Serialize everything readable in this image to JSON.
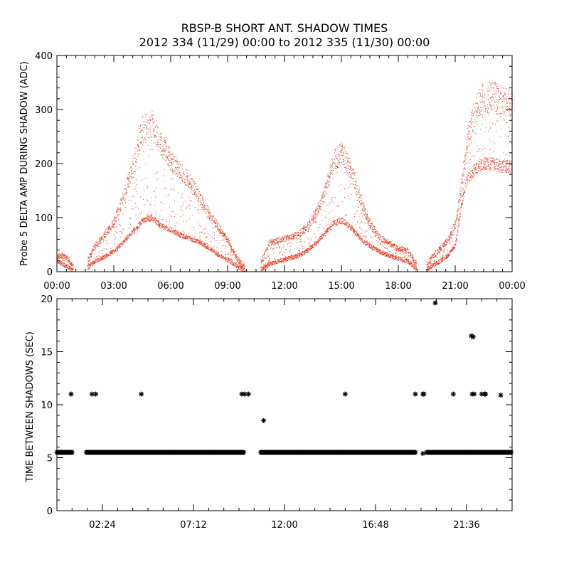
{
  "chart_data": [
    {
      "type": "scatter",
      "title": "RBSP-B SHORT ANT. SHADOW TIMES",
      "subtitle": "2012 334 (11/29) 00:00 to 2012 335 (11/30) 00:00",
      "xlabel": "",
      "ylabel": "Probe 5 DELTA AMP DURING SHADOW (ADC)",
      "xlim_hours": [
        0,
        24
      ],
      "ylim": [
        0,
        400
      ],
      "x_tick_labels": [
        "00:00",
        "03:00",
        "06:00",
        "09:00",
        "12:00",
        "15:00",
        "18:00",
        "21:00",
        "00:00"
      ],
      "y_ticks": [
        0,
        100,
        200,
        300,
        400
      ],
      "color": "#e8381b",
      "grid": false,
      "gaps_hours": [
        [
          0.85,
          1.6
        ],
        [
          9.9,
          10.75
        ],
        [
          18.95,
          19.5
        ]
      ],
      "series": [
        {
          "upper_envelope": {
            "x_hours": [
              0.0,
              0.3,
              0.6,
              0.8,
              1.6,
              2.0,
              2.5,
              3.0,
              3.5,
              4.0,
              4.5,
              5.0,
              5.5,
              6.0,
              6.5,
              7.0,
              7.5,
              8.0,
              8.5,
              9.0,
              9.5,
              9.9,
              10.75,
              11.2,
              11.7,
              12.2,
              12.7,
              13.2,
              13.7,
              14.2,
              14.6,
              15.0,
              15.4,
              15.8,
              16.2,
              16.6,
              17.0,
              17.5,
              18.0,
              18.5,
              18.95,
              19.5,
              19.8,
              20.2,
              20.6,
              21.0,
              21.3,
              21.6,
              22.0,
              22.5,
              23.0,
              23.5,
              24.0
            ],
            "values": [
              30,
              32,
              25,
              12,
              22,
              50,
              70,
              95,
              140,
              200,
              270,
              280,
              240,
              210,
              190,
              170,
              140,
              110,
              85,
              60,
              25,
              10,
              20,
              55,
              60,
              65,
              70,
              85,
              115,
              160,
              210,
              225,
              200,
              160,
              115,
              85,
              65,
              55,
              45,
              40,
              15,
              15,
              30,
              45,
              60,
              90,
              160,
              240,
              300,
              330,
              330,
              320,
              320
            ]
          },
          "lower_band": {
            "x_hours": [
              0.0,
              0.3,
              0.6,
              0.8,
              1.6,
              2.0,
              2.5,
              3.0,
              3.5,
              4.0,
              4.5,
              5.0,
              5.5,
              6.0,
              6.5,
              7.0,
              7.5,
              8.0,
              8.5,
              9.0,
              9.5,
              9.9,
              10.75,
              11.2,
              11.7,
              12.2,
              12.7,
              13.2,
              13.7,
              14.2,
              14.6,
              15.0,
              15.4,
              15.8,
              16.2,
              16.6,
              17.0,
              17.5,
              18.0,
              18.5,
              18.95,
              19.5,
              19.8,
              20.2,
              20.6,
              21.0,
              21.3,
              21.6,
              22.0,
              22.5,
              23.0,
              23.5,
              24.0
            ],
            "values": [
              20,
              15,
              8,
              3,
              8,
              20,
              28,
              38,
              55,
              75,
              95,
              100,
              85,
              78,
              68,
              62,
              55,
              45,
              32,
              22,
              10,
              3,
              5,
              15,
              20,
              25,
              30,
              40,
              55,
              75,
              90,
              95,
              85,
              70,
              55,
              45,
              38,
              30,
              25,
              20,
              5,
              5,
              12,
              20,
              30,
              50,
              120,
              170,
              190,
              200,
              200,
              195,
              195
            ]
          }
        }
      ]
    },
    {
      "type": "scatter",
      "xlabel": "",
      "ylabel": "TIME BETWEEN SHADOWS (SEC)",
      "xlim_hours": [
        0,
        24
      ],
      "ylim": [
        0,
        20
      ],
      "x_tick_labels": [
        "02:24",
        "07:12",
        "12:00",
        "16:48",
        "21:36"
      ],
      "y_ticks": [
        0,
        5,
        10,
        15,
        20
      ],
      "marker": "*",
      "color": "#000000",
      "grid": false,
      "baseline": {
        "value": 5.5,
        "segments_hours": [
          [
            0.0,
            0.85
          ],
          [
            1.55,
            9.9
          ],
          [
            10.75,
            18.95
          ],
          [
            19.5,
            24.0
          ]
        ]
      },
      "points": {
        "x_hours": [
          0.75,
          1.85,
          2.05,
          4.45,
          9.75,
          9.9,
          10.1,
          10.9,
          15.2,
          18.9,
          19.3,
          19.35,
          19.3,
          19.95,
          20.9,
          21.85,
          21.95,
          21.9,
          22.0,
          22.4,
          22.55,
          22.6,
          23.4
        ],
        "values": [
          11,
          11,
          11,
          11,
          11,
          11,
          11,
          8.5,
          11,
          11,
          11,
          11,
          5.4,
          19.6,
          11,
          16.5,
          16.4,
          11,
          11,
          11,
          11,
          11,
          10.9
        ]
      }
    }
  ]
}
